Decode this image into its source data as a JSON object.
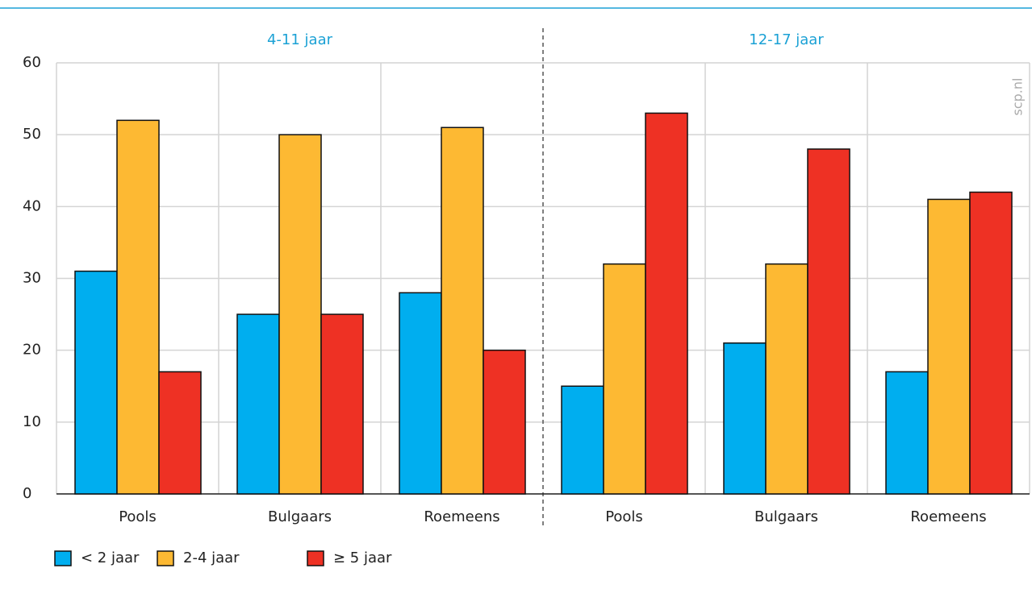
{
  "chart_data": {
    "type": "bar",
    "groups": [
      "4-11 jaar",
      "12-17 jaar"
    ],
    "categories": [
      "Pools",
      "Bulgaars",
      "Roemeens",
      "Pools",
      "Bulgaars",
      "Roemeens"
    ],
    "series": [
      {
        "name": "< 2 jaar",
        "color": "#00aeef",
        "values": [
          31,
          25,
          28,
          15,
          21,
          17
        ]
      },
      {
        "name": "2-4 jaar",
        "color": "#fdb933",
        "values": [
          52,
          50,
          51,
          32,
          32,
          41
        ]
      },
      {
        "name": "≥ 5 jaar",
        "color": "#ee3124",
        "values": [
          17,
          25,
          20,
          53,
          48,
          42
        ]
      }
    ],
    "ylim": [
      0,
      60
    ],
    "yticks": [
      0,
      10,
      20,
      30,
      40,
      50,
      60
    ],
    "grid": true,
    "watermark": "scp.nl",
    "legend": "bottom-left"
  }
}
